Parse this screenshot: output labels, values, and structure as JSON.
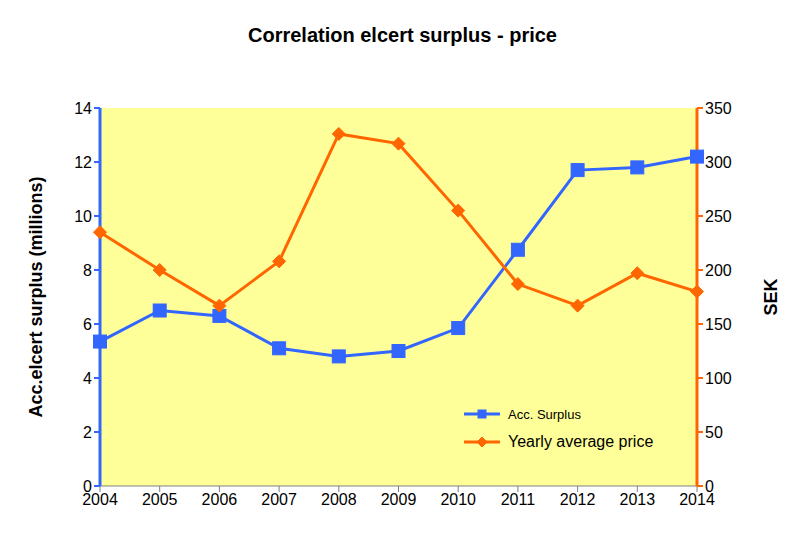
{
  "chart_data": {
    "type": "line",
    "title": "Correlation elcert surplus - price",
    "categories": [
      "2004",
      "2005",
      "2006",
      "2007",
      "2008",
      "2009",
      "2010",
      "2011",
      "2012",
      "2013",
      "2014"
    ],
    "y_label": "Acc.elcert surplus (millions)",
    "y2_label": "SEK",
    "ylim": [
      0,
      14
    ],
    "yticks": [
      0,
      2,
      4,
      6,
      8,
      10,
      12,
      14
    ],
    "y2lim": [
      0,
      350
    ],
    "y2ticks": [
      0,
      50,
      100,
      150,
      200,
      250,
      300,
      350
    ],
    "grid": false,
    "legend": "lower right",
    "series": [
      {
        "name": "Acc. Surplus",
        "color": "#3366FF",
        "marker": "square",
        "values": [
          5.35,
          6.5,
          6.3,
          5.1,
          4.8,
          5.0,
          5.85,
          8.75,
          11.7,
          11.8,
          12.2
        ]
      },
      {
        "name": "Yearly average price",
        "color": "#FF6600",
        "marker": "diamond",
        "axis": "y2",
        "values": [
          235,
          200,
          167,
          208,
          326,
          317,
          255,
          187,
          167,
          197,
          180
        ]
      }
    ]
  }
}
